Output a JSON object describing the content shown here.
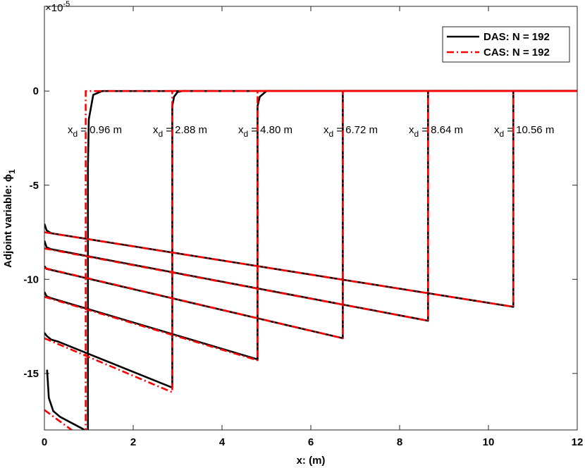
{
  "chart_data": {
    "type": "line",
    "xlabel": "x: (m)",
    "ylabel": "Adjoint variable: ϕ",
    "ylabel_subscript": "1",
    "y_multiplier": "×10",
    "y_multiplier_exponent": "-5",
    "xlim": [
      0,
      12
    ],
    "ylim": [
      -18,
      4.5
    ],
    "xticks": [
      0,
      2,
      4,
      6,
      8,
      10,
      12
    ],
    "yticks": [
      -15,
      -10,
      -5,
      0
    ],
    "legend_position": "upper right",
    "annotations": [
      {
        "base": "x",
        "sub": "d",
        "text": "= 0.96 m"
      },
      {
        "base": "x",
        "sub": "d",
        "text": "= 2.88 m"
      },
      {
        "base": "x",
        "sub": "d",
        "text": "= 4.80 m"
      },
      {
        "base": "x",
        "sub": "d",
        "text": "= 6.72 m"
      },
      {
        "base": "x",
        "sub": "d",
        "text": "= 8.64 m"
      },
      {
        "base": "x",
        "sub": "d",
        "text": "= 10.56 m"
      }
    ],
    "series": [
      {
        "name": "DAS: N = 192",
        "color": "#000000",
        "style": "solid",
        "lines": [
          {
            "x": [
              0.06,
              0.1,
              0.2,
              0.35,
              0.87,
              0.98,
              0.98,
              1.0,
              1.1,
              1.3,
              12
            ],
            "values": [
              -14.8,
              -16.3,
              -17.0,
              -17.3,
              -17.95,
              -18.2,
              -4,
              -1.5,
              -0.2,
              0,
              0
            ]
          },
          {
            "x": [
              0,
              0.05,
              0.15,
              0.3,
              2.88,
              2.88,
              2.92,
              3.0,
              3.1,
              12
            ],
            "values": [
              -12.84,
              -13.0,
              -13.2,
              -13.3,
              -15.75,
              -0.8,
              -0.3,
              -0.05,
              0,
              0
            ]
          },
          {
            "x": [
              0,
              0.05,
              0.15,
              0.3,
              4.8,
              4.8,
              4.85,
              5.0,
              12
            ],
            "values": [
              -10.67,
              -10.9,
              -11.0,
              -11.1,
              -14.25,
              -0.8,
              -0.3,
              0,
              0
            ]
          },
          {
            "x": [
              0,
              0.05,
              0.15,
              6.72,
              6.72,
              12
            ],
            "values": [
              -9.3,
              -9.45,
              -9.5,
              -13.13,
              0,
              0
            ]
          },
          {
            "x": [
              0,
              0.05,
              0.15,
              8.64,
              8.64,
              12
            ],
            "values": [
              -7.95,
              -8.3,
              -8.4,
              -12.2,
              0,
              0
            ]
          },
          {
            "x": [
              0,
              0.05,
              0.15,
              10.56,
              10.56,
              12
            ],
            "values": [
              -7.05,
              -7.4,
              -7.55,
              -11.46,
              0,
              0
            ]
          }
        ]
      },
      {
        "name": "CAS: N = 192",
        "color": "#ff0000",
        "style": "dashdot",
        "lines": [
          {
            "x": [
              0,
              0.93,
              0.93,
              12
            ],
            "values": [
              -16.94,
              -18.55,
              0,
              0
            ]
          },
          {
            "x": [
              0,
              2.88,
              2.88,
              12
            ],
            "values": [
              -13.13,
              -16.0,
              0,
              0
            ]
          },
          {
            "x": [
              0,
              4.8,
              4.8,
              12
            ],
            "values": [
              -10.93,
              -14.3,
              0,
              0
            ]
          },
          {
            "x": [
              0,
              6.72,
              6.72,
              12
            ],
            "values": [
              -9.4,
              -13.13,
              0,
              0
            ]
          },
          {
            "x": [
              0,
              8.64,
              8.64,
              12
            ],
            "values": [
              -8.36,
              -12.2,
              0,
              0
            ]
          },
          {
            "x": [
              0,
              10.56,
              10.56,
              12
            ],
            "values": [
              -7.5,
              -11.46,
              0,
              0
            ]
          }
        ]
      }
    ]
  }
}
